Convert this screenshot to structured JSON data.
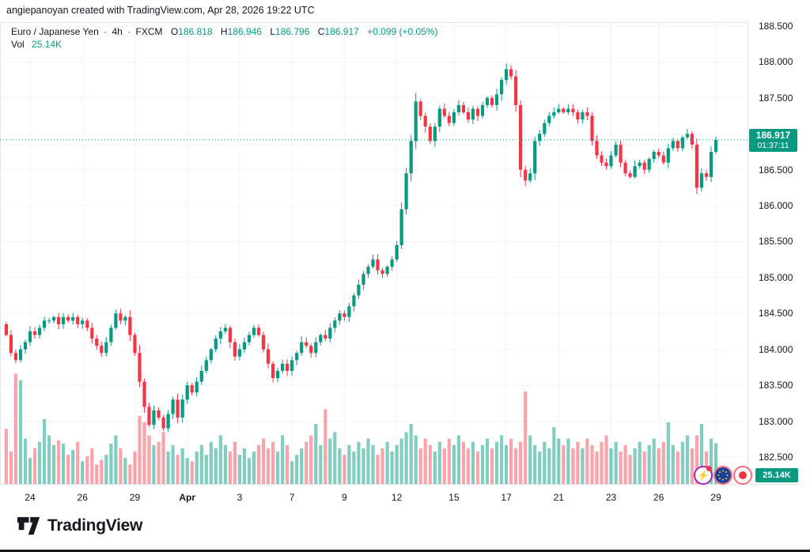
{
  "attribution": "angiepanoyan created with TradingView.com, Apr 28, 2026 19:22 UTC",
  "legend": {
    "symbol_title": "Euro / Japanese Yen",
    "separator": "·",
    "interval": "4h",
    "exchange": "FXCM",
    "o_label": "O",
    "o_value": "186.818",
    "h_label": "H",
    "h_value": "186.946",
    "l_label": "L",
    "l_value": "186.796",
    "c_label": "C",
    "c_value": "186.917",
    "change": "+0.099 (+0.05%)",
    "vol_label": "Vol",
    "vol_value": "25.14K"
  },
  "price_badge": {
    "price": "186.917",
    "countdown": "01:37:11"
  },
  "vol_badge": "25.14K",
  "price_axis_labels": [
    "188.500",
    "188.000",
    "187.500",
    "187.000",
    "186.500",
    "186.000",
    "185.500",
    "185.000",
    "184.500",
    "184.000",
    "183.500",
    "183.000",
    "182.500"
  ],
  "colors": {
    "up": "#089981",
    "down": "#f23645",
    "vol_up": "rgba(8,153,129,0.5)",
    "vol_down": "rgba(242,54,69,0.45)",
    "grid": "#f0f3fa",
    "axis_border": "#e0e3eb",
    "text": "#131722",
    "badge": "#089981"
  },
  "marker_icons": [
    "lightning-event",
    "eu-flag",
    "japan-flag"
  ],
  "logo_text": "TradingView",
  "chart_data": {
    "type": "candlestick_with_volume",
    "symbol": "Euro / Japanese Yen",
    "interval": "4h",
    "exchange": "FXCM",
    "last_ohlc": {
      "open": 186.818,
      "high": 186.946,
      "low": 186.796,
      "close": 186.917
    },
    "change_abs": 0.099,
    "change_pct": 0.05,
    "current_price": 186.917,
    "countdown": "01:37:11",
    "last_volume_k": 25.14,
    "price_axis": {
      "min_label": 182.5,
      "max_label": 188.5,
      "step": 0.5
    },
    "time_ticks": [
      {
        "label": "24",
        "i": 5
      },
      {
        "label": "26",
        "i": 16
      },
      {
        "label": "29",
        "i": 27
      },
      {
        "label": "Apr",
        "i": 38,
        "bold": true
      },
      {
        "label": "3",
        "i": 49
      },
      {
        "label": "7",
        "i": 60
      },
      {
        "label": "9",
        "i": 71
      },
      {
        "label": "12",
        "i": 82
      },
      {
        "label": "15",
        "i": 94
      },
      {
        "label": "17",
        "i": 105
      },
      {
        "label": "21",
        "i": 116
      },
      {
        "label": "23",
        "i": 127
      },
      {
        "label": "26",
        "i": 137
      },
      {
        "label": "29",
        "i": 149
      }
    ],
    "first_open": 184.35,
    "closes": [
      184.2,
      183.95,
      183.85,
      184.0,
      184.1,
      184.25,
      184.2,
      184.3,
      184.4,
      184.4,
      184.45,
      184.35,
      184.45,
      184.4,
      184.45,
      184.35,
      184.4,
      184.3,
      184.15,
      184.05,
      183.95,
      184.1,
      184.3,
      184.5,
      184.4,
      184.45,
      184.2,
      183.95,
      183.55,
      183.2,
      182.95,
      183.15,
      183.05,
      182.9,
      183.1,
      183.3,
      183.05,
      183.3,
      183.5,
      183.4,
      183.55,
      183.7,
      183.85,
      184.0,
      184.15,
      184.25,
      184.3,
      184.1,
      183.9,
      184.0,
      184.1,
      184.2,
      184.3,
      184.2,
      184.0,
      183.8,
      183.6,
      183.7,
      183.8,
      183.7,
      183.85,
      183.95,
      184.1,
      184.05,
      183.95,
      184.1,
      184.2,
      184.15,
      184.3,
      184.4,
      184.5,
      184.45,
      184.6,
      184.75,
      184.9,
      185.05,
      185.15,
      185.25,
      185.1,
      185.05,
      185.15,
      185.25,
      185.45,
      185.95,
      186.45,
      186.9,
      187.45,
      187.25,
      187.1,
      186.9,
      187.1,
      187.35,
      187.25,
      187.15,
      187.3,
      187.4,
      187.3,
      187.2,
      187.35,
      187.25,
      187.4,
      187.5,
      187.4,
      187.55,
      187.75,
      187.9,
      187.8,
      187.4,
      186.5,
      186.35,
      186.45,
      186.9,
      187.0,
      187.15,
      187.25,
      187.3,
      187.35,
      187.3,
      187.35,
      187.3,
      187.2,
      187.3,
      187.25,
      186.9,
      186.7,
      186.6,
      186.55,
      186.7,
      186.85,
      186.6,
      186.45,
      186.4,
      186.55,
      186.6,
      186.5,
      186.65,
      186.75,
      186.7,
      186.6,
      186.8,
      186.9,
      186.8,
      186.95,
      187.0,
      186.85,
      186.25,
      186.45,
      186.4,
      186.75,
      186.917
    ],
    "volumes_k": [
      34,
      20,
      68,
      64,
      28,
      16,
      22,
      26,
      40,
      30,
      24,
      27,
      25,
      18,
      21,
      26,
      14,
      17,
      22,
      12,
      15,
      18,
      25,
      30,
      22,
      16,
      12,
      20,
      42,
      38,
      30,
      24,
      26,
      32,
      20,
      24,
      18,
      22,
      16,
      14,
      20,
      24,
      18,
      26,
      22,
      30,
      24,
      20,
      26,
      18,
      22,
      16,
      20,
      24,
      28,
      22,
      26,
      20,
      30,
      24,
      14,
      18,
      22,
      26,
      30,
      37,
      24,
      46,
      28,
      32,
      22,
      18,
      24,
      20,
      26,
      22,
      28,
      24,
      18,
      22,
      26,
      20,
      24,
      28,
      32,
      37,
      30,
      22,
      28,
      24,
      20,
      26,
      22,
      28,
      24,
      30,
      26,
      22,
      26,
      20,
      24,
      28,
      22,
      26,
      30,
      24,
      28,
      22,
      26,
      57,
      30,
      24,
      20,
      26,
      22,
      35,
      28,
      24,
      28,
      22,
      26,
      22,
      28,
      24,
      20,
      26,
      30,
      22,
      26,
      20,
      24,
      18,
      22,
      26,
      20,
      24,
      28,
      22,
      26,
      38,
      24,
      20,
      26,
      30,
      22,
      30,
      37,
      20,
      28,
      25.14
    ]
  }
}
